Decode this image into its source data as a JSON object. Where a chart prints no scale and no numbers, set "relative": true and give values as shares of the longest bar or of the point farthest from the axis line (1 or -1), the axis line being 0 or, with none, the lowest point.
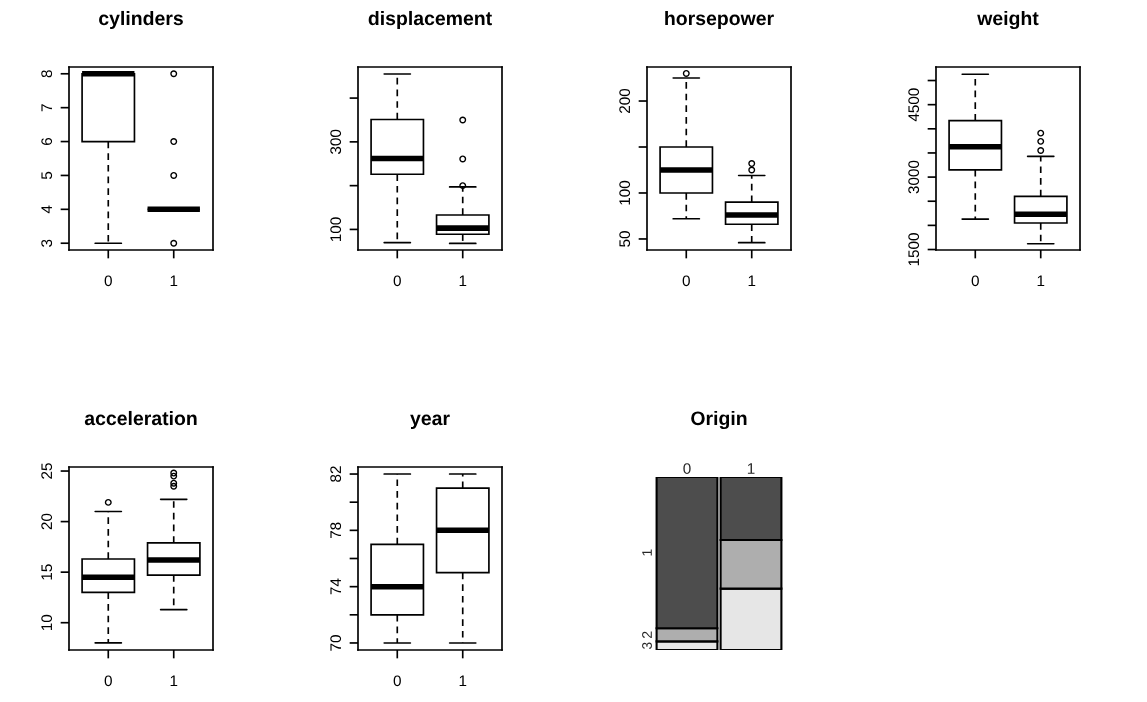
{
  "chart_data": [
    {
      "type": "box",
      "title": "cylinders",
      "categories": [
        "0",
        "1"
      ],
      "ylim": [
        2.8,
        8.2
      ],
      "yticks": [
        3,
        4,
        5,
        6,
        7,
        8
      ],
      "boxes": [
        {
          "low": 3,
          "q1": 6,
          "median": 8,
          "q3": 8,
          "high": 8
        },
        {
          "low": 4,
          "q1": 4,
          "median": 4,
          "q3": 4,
          "high": 4,
          "outliers": [
            3,
            5,
            6,
            8
          ]
        }
      ]
    },
    {
      "type": "box",
      "title": "displacement",
      "categories": [
        "0",
        "1"
      ],
      "ylim": [
        53,
        471
      ],
      "yticks": [
        100,
        {
          "value": 200,
          "label": null
        },
        300,
        {
          "value": 400,
          "label": null
        }
      ],
      "boxes": [
        {
          "low": 70,
          "q1": 226,
          "median": 262,
          "q3": 351,
          "high": 455
        },
        {
          "low": 68,
          "q1": 89,
          "median": 103,
          "q3": 133,
          "high": 197,
          "outliers": [
            200,
            261,
            350
          ]
        }
      ]
    },
    {
      "type": "box",
      "title": "horsepower",
      "categories": [
        "0",
        "1"
      ],
      "ylim": [
        38,
        237
      ],
      "yticks": [
        50,
        100,
        {
          "value": 150,
          "label": null
        },
        200
      ],
      "boxes": [
        {
          "low": 72,
          "q1": 100,
          "median": 125,
          "q3": 150,
          "high": 225,
          "outliers": [
            230
          ]
        },
        {
          "low": 46,
          "q1": 66,
          "median": 76,
          "q3": 90,
          "high": 119,
          "outliers": [
            125,
            132
          ]
        }
      ]
    },
    {
      "type": "box",
      "title": "weight",
      "categories": [
        "0",
        "1"
      ],
      "ylim": [
        1490,
        5280
      ],
      "yticks": [
        1500,
        {
          "value": 2000,
          "label": null
        },
        {
          "value": 2500,
          "label": null
        },
        3000,
        {
          "value": 3500,
          "label": null
        },
        {
          "value": 4000,
          "label": null
        },
        4500,
        {
          "value": 5000,
          "label": null
        }
      ],
      "boxes": [
        {
          "low": 2130,
          "q1": 3150,
          "median": 3630,
          "q3": 4170,
          "high": 5130
        },
        {
          "low": 1620,
          "q1": 2050,
          "median": 2230,
          "q3": 2600,
          "high": 3430,
          "outliers": [
            3550,
            3740,
            3910
          ]
        }
      ]
    },
    {
      "type": "box",
      "title": "acceleration",
      "categories": [
        "0",
        "1"
      ],
      "ylim": [
        7.3,
        25.4
      ],
      "yticks": [
        10,
        15,
        20,
        25
      ],
      "boxes": [
        {
          "low": 8.0,
          "q1": 13.0,
          "median": 14.5,
          "q3": 16.3,
          "high": 21.0,
          "outliers": [
            21.9
          ]
        },
        {
          "low": 11.3,
          "q1": 14.7,
          "median": 16.2,
          "q3": 17.9,
          "high": 22.2,
          "outliers": [
            23.5,
            23.8,
            24.5,
            24.8
          ]
        }
      ]
    },
    {
      "type": "box",
      "title": "year",
      "categories": [
        "0",
        "1"
      ],
      "ylim": [
        69.5,
        82.5
      ],
      "yticks": [
        70,
        {
          "value": 72,
          "label": null
        },
        74,
        {
          "value": 76,
          "label": null
        },
        78,
        {
          "value": 80,
          "label": null
        },
        82
      ],
      "boxes": [
        {
          "low": 70,
          "q1": 72,
          "median": 74,
          "q3": 77,
          "high": 82
        },
        {
          "low": 70,
          "q1": 75,
          "median": 78,
          "q3": 81,
          "high": 82
        }
      ]
    },
    {
      "type": "bar",
      "title": "Origin",
      "categories": [
        "0",
        "1"
      ],
      "stacked": true,
      "relative": true,
      "series": [
        {
          "name": "3",
          "color": "#e6e6e6",
          "values": [
            0.05,
            0.355
          ]
        },
        {
          "name": "2",
          "color": "#aeaeae",
          "values": [
            0.076,
            0.281
          ]
        },
        {
          "name": "1",
          "color": "#4d4d4d",
          "values": [
            0.874,
            0.364
          ]
        }
      ]
    }
  ]
}
